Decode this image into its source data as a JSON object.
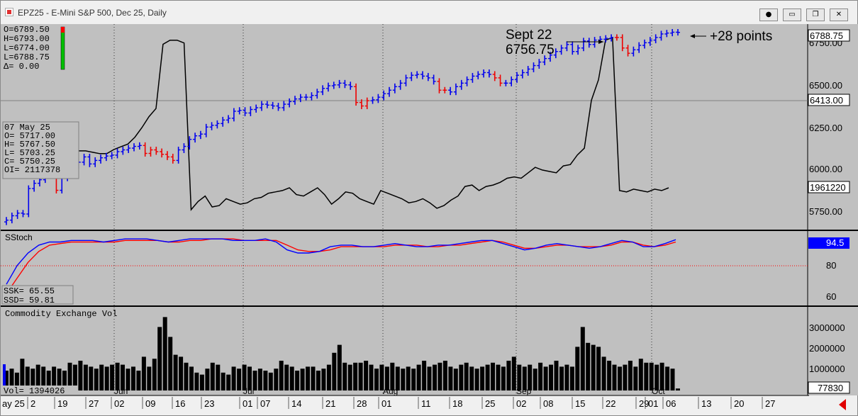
{
  "window": {
    "title": "EPZ25 - E-Mini S&P 500, Dec 25, Daily",
    "icon": "app-icon",
    "buttons": [
      "record-icon",
      "minimize-icon",
      "restore-icon",
      "close-icon"
    ]
  },
  "ohlc_box": {
    "o": "O=6789.50",
    "h": "H=6793.00",
    "l": "L=6774.00",
    "last": "L=6788.75",
    "delta": "Δ=   0.00"
  },
  "data_window": {
    "date": "07 May 25",
    "o": "O=     5717.00",
    "h": "H=     5767.50",
    "l": "L=     5703.25",
    "c": "C=     5750.25",
    "oi": "OI=  2117378"
  },
  "annotation": {
    "date_label": "Sept 22",
    "price_label": "6756.75",
    "gain_label": "+28 points"
  },
  "price_axis": {
    "ticks": [
      "6750.00",
      "6500.00",
      "6250.00",
      "6000.00",
      "5750.00"
    ],
    "last_price_box": "6788.75",
    "ref_price_box": "6413.00",
    "oi_box": "1961220"
  },
  "stoch_panel": {
    "title": "SStoch",
    "ticks": [
      "80",
      "60"
    ],
    "value_box": "94.5",
    "ssk": "SSK=   65.55",
    "ssd": "SSD=   59.81"
  },
  "volume_panel": {
    "title": "Commodity Exchange Vol",
    "ticks": [
      "3000000",
      "2000000",
      "1000000"
    ],
    "value_box": "77830",
    "vol_readout": "Vol=   1394026"
  },
  "x_axis": {
    "months": [
      "Jun",
      "Jul",
      "Aug",
      "Sep",
      "Oct"
    ],
    "days": [
      "ay 25",
      "2",
      "19",
      "27",
      "02",
      "09",
      "16",
      "23",
      "01",
      "07",
      "14",
      "21",
      "28",
      "01",
      "11",
      "18",
      "25",
      "02",
      "08",
      "15",
      "22",
      "29",
      "01",
      "06",
      "13",
      "20",
      "27"
    ]
  },
  "colors": {
    "background": "#c0c0c0",
    "up_bar": "#0000ee",
    "down_bar": "#ee0000",
    "oi_line": "#000000",
    "stoch_k": "#0000ff",
    "stoch_d": "#ff0000",
    "volume": "#000000",
    "value_box_blue": "#0000ff"
  },
  "chart_data": {
    "type": "bar",
    "title": "EPZ25 - E-Mini S&P 500, Dec 25, Daily",
    "price_range": [
      5650,
      6820
    ],
    "closes": [
      5720,
      5745,
      5760,
      5755,
      5900,
      5930,
      5950,
      5980,
      5975,
      5890,
      5960,
      6020,
      6030,
      6050,
      6080,
      6040,
      6060,
      6075,
      6085,
      6090,
      6110,
      6120,
      6130,
      6140,
      6145,
      6100,
      6120,
      6110,
      6095,
      6080,
      6060,
      6120,
      6140,
      6180,
      6200,
      6210,
      6250,
      6260,
      6270,
      6290,
      6300,
      6340,
      6345,
      6330,
      6350,
      6360,
      6380,
      6375,
      6370,
      6360,
      6380,
      6395,
      6410,
      6420,
      6420,
      6430,
      6450,
      6470,
      6485,
      6490,
      6500,
      6490,
      6480,
      6390,
      6370,
      6400,
      6405,
      6420,
      6440,
      6460,
      6480,
      6500,
      6530,
      6545,
      6550,
      6540,
      6530,
      6510,
      6460,
      6460,
      6450,
      6480,
      6500,
      6520,
      6540,
      6550,
      6560,
      6550,
      6530,
      6500,
      6500,
      6520,
      6545,
      6560,
      6580,
      6600,
      6620,
      6640,
      6660,
      6680,
      6700,
      6720,
      6680,
      6700,
      6740,
      6720,
      6745,
      6750,
      6755,
      6760,
      6760,
      6700,
      6670,
      6690,
      6715,
      6730,
      6745,
      6760,
      6780,
      6785,
      6790,
      6789
    ],
    "down_days": [
      9,
      25,
      26,
      27,
      28,
      29,
      30,
      63,
      64,
      65,
      78,
      79,
      88,
      89,
      110,
      111,
      112
    ],
    "open_interest": [
      2250000,
      2250000,
      2240000,
      2230000,
      2230000,
      2260000,
      2280000,
      2300000,
      2350000,
      2420000,
      2500000,
      2560000,
      3030000,
      3060000,
      3060000,
      3040000,
      1820000,
      1880000,
      1920000,
      1840000,
      1850000,
      1900000,
      1880000,
      1860000,
      1870000,
      1900000,
      1910000,
      1940000,
      1950000,
      1960000,
      1980000,
      1930000,
      1920000,
      1950000,
      1980000,
      1930000,
      1860000,
      1900000,
      1950000,
      1940000,
      1900000,
      1880000,
      1860000,
      1960000,
      1940000,
      1920000,
      1900000,
      1870000,
      1880000,
      1900000,
      1870000,
      1830000,
      1850000,
      1890000,
      1920000,
      1990000,
      2000000,
      1960000,
      1990000,
      2000000,
      2020000,
      2050000,
      2060000,
      2050000,
      2090000,
      2130000,
      2110000,
      2100000,
      2090000,
      2140000,
      2150000,
      2220000,
      2270000,
      2620000,
      2770000,
      3060000,
      3080000,
      1960000,
      1950000,
      1970000,
      1960000,
      1950000,
      1970000,
      1960000,
      1980000
    ],
    "stoch_k": [
      66,
      78,
      86,
      91,
      93,
      93,
      94,
      94,
      94,
      93,
      94,
      95,
      95,
      95,
      94,
      93,
      94,
      95,
      95,
      95,
      95,
      94,
      94,
      94,
      95,
      93,
      88,
      86,
      86,
      87,
      90,
      91,
      91,
      90,
      90,
      91,
      92,
      91,
      90,
      90,
      91,
      91,
      92,
      93,
      94,
      94,
      92,
      90,
      88,
      89,
      91,
      92,
      91,
      90,
      89,
      90,
      92,
      94,
      93,
      90,
      90,
      92,
      94.5
    ],
    "stoch_d": [
      60,
      70,
      80,
      87,
      91,
      92,
      93,
      93,
      93,
      93,
      93,
      94,
      94,
      94,
      94,
      93,
      93,
      94,
      94,
      95,
      95,
      95,
      94,
      94,
      94,
      94,
      91,
      88,
      87,
      87,
      88,
      90,
      90,
      90,
      90,
      90,
      91,
      91,
      91,
      90,
      90,
      91,
      91,
      92,
      93,
      94,
      93,
      91,
      89,
      89,
      90,
      91,
      91,
      90,
      90,
      90,
      91,
      93,
      93,
      91,
      90,
      91,
      93
    ],
    "stoch_range": [
      53,
      100
    ],
    "volume": [
      1000000,
      1100000,
      900000,
      1600000,
      1200000,
      1100000,
      1300000,
      1200000,
      1000000,
      1200000,
      1100000,
      1000000,
      1400000,
      1300000,
      1500000,
      1300000,
      1200000,
      1100000,
      1300000,
      1200000,
      1300000,
      1400000,
      1300000,
      1100000,
      1200000,
      1000000,
      1700000,
      1200000,
      1600000,
      3200000,
      3700000,
      2700000,
      1800000,
      1700000,
      1400000,
      1200000,
      900000,
      800000,
      1100000,
      1400000,
      1300000,
      900000,
      800000,
      1200000,
      1100000,
      1300000,
      1200000,
      1000000,
      1100000,
      1000000,
      900000,
      1100000,
      1500000,
      1300000,
      1200000,
      1000000,
      1100000,
      1200000,
      1200000,
      1000000,
      1100000,
      1300000,
      1900000,
      2300000,
      1400000,
      1300000,
      1400000,
      1400000,
      1500000,
      1300000,
      1100000,
      1300000,
      1200000,
      1400000,
      1200000,
      1100000,
      1200000,
      1100000,
      1300000,
      1500000,
      1200000,
      1300000,
      1400000,
      1500000,
      1200000,
      1100000,
      1300000,
      1400000,
      1200000,
      1100000,
      1200000,
      1300000,
      1400000,
      1300000,
      1200000,
      1500000,
      1700000,
      1300000,
      1200000,
      1300000,
      1100000,
      1400000,
      1200000,
      1300000,
      1500000,
      1200000,
      1300000,
      1200000,
      2200000,
      3200000,
      2400000,
      2300000,
      2200000,
      1700000,
      1500000,
      1300000,
      1200000,
      1300000,
      1500000,
      1200000,
      1600000,
      1400000,
      1400000,
      1300000,
      1400000,
      1200000,
      1100000,
      100000
    ],
    "volume_range": [
      0,
      4000000
    ]
  }
}
